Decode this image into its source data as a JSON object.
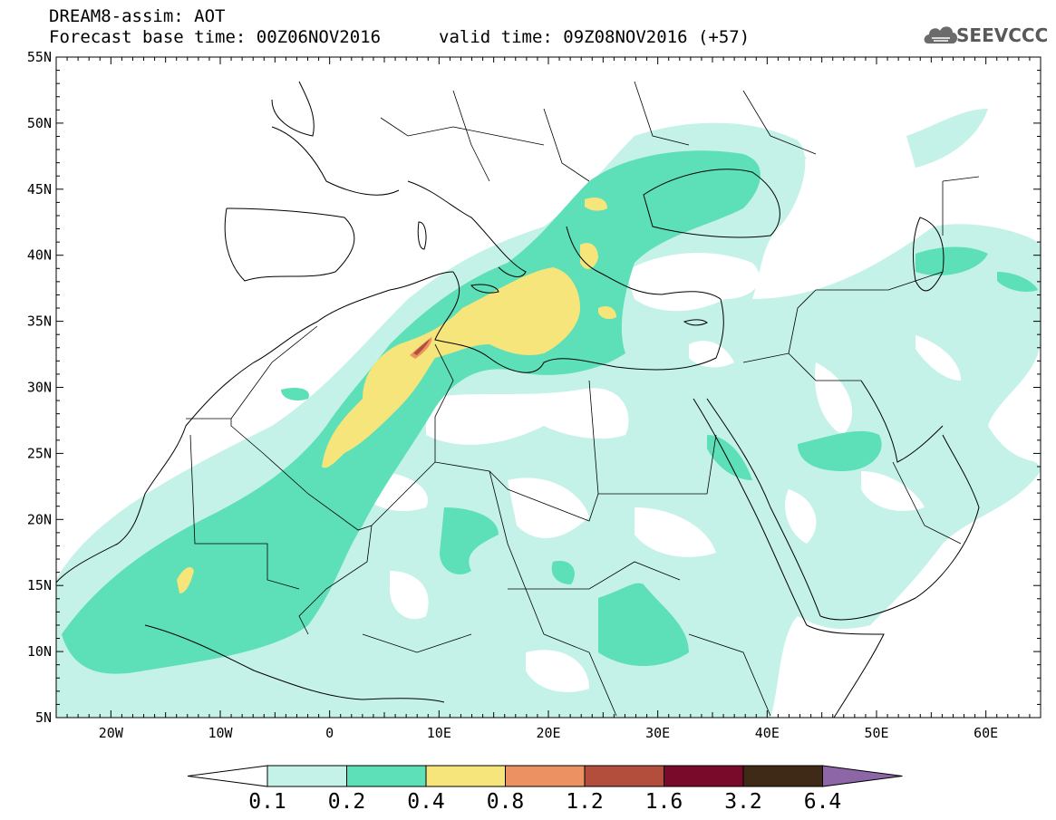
{
  "title": {
    "line1": "DREAM8-assim: AOT",
    "line2": "Forecast base time: 00Z06NOV2016",
    "line3": "valid time: 09Z08NOV2016 (+57)"
  },
  "logo": {
    "text": "SEEVCCC",
    "icon": "cloud-logo-icon"
  },
  "axes": {
    "lat_labels": [
      "55N",
      "50N",
      "45N",
      "40N",
      "35N",
      "30N",
      "25N",
      "20N",
      "15N",
      "10N",
      "5N"
    ],
    "lon_labels": [
      "20W",
      "10W",
      "0",
      "10E",
      "20E",
      "30E",
      "40E",
      "50E",
      "60E"
    ],
    "lat_range": [
      5,
      55
    ],
    "lon_range": [
      -25,
      65
    ]
  },
  "colorbar": {
    "labels": [
      "0.1",
      "0.2",
      "0.4",
      "0.8",
      "1.2",
      "1.6",
      "3.2",
      "6.4"
    ],
    "colors": [
      "#ffffff",
      "#c4f2e8",
      "#5ddfb8",
      "#f5e57a",
      "#eb9162",
      "#b34e3c",
      "#7a0a2a",
      "#3f2a17",
      "#8d66a8"
    ]
  },
  "chart_data": {
    "type": "heatmap",
    "title": "DREAM8-assim: AOT",
    "variable": "AOT",
    "levels": [
      0.1,
      0.2,
      0.4,
      0.8,
      1.2,
      1.6,
      3.2,
      6.4
    ],
    "xlim": [
      -25,
      65
    ],
    "ylim": [
      5,
      55
    ],
    "max_region": "Eastern Algeria / Tunisia (~32N, 8E), value 1.2-1.6"
  }
}
